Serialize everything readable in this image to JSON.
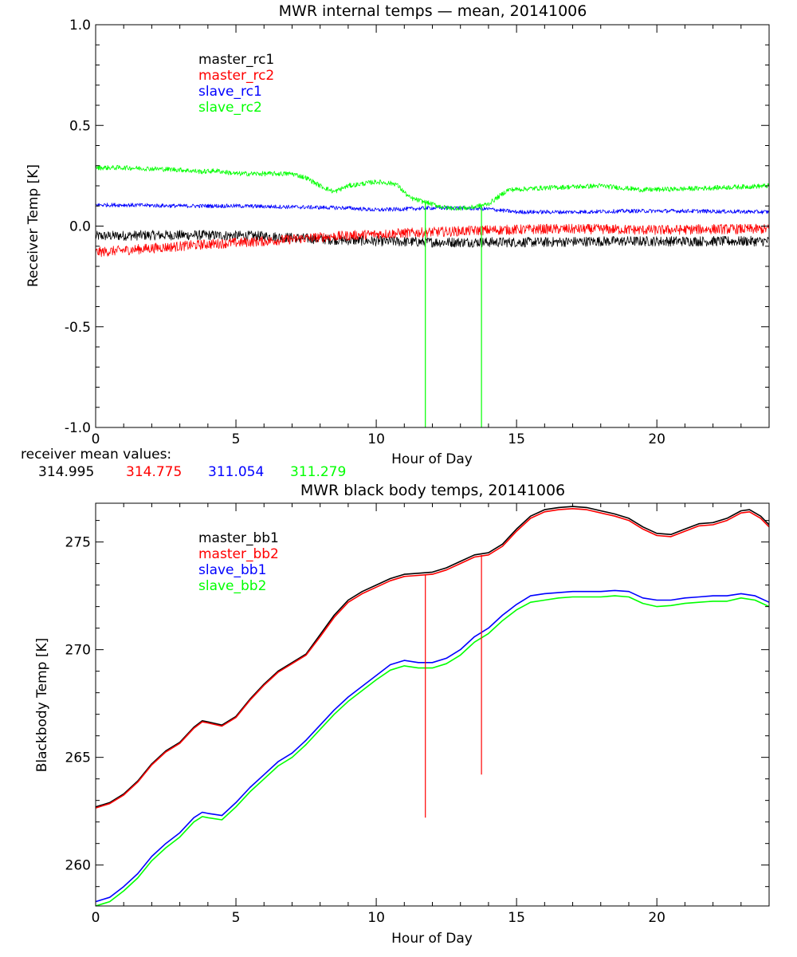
{
  "chart_data": [
    {
      "type": "line",
      "title": "MWR internal temps — mean, 20141006",
      "xlabel": "Hour of Day",
      "ylabel": "Receiver Temp [K]",
      "xlim": [
        0,
        24
      ],
      "ylim": [
        -1.0,
        1.0
      ],
      "x_ticks": [
        0,
        5,
        10,
        15,
        20
      ],
      "y_ticks": [
        -1.0,
        -0.5,
        0.0,
        0.5,
        1.0
      ],
      "y_tick_labels": [
        "-1.0",
        "-0.5",
        "0.0",
        "0.5",
        "1.0"
      ],
      "grid": false,
      "legend_position": "top-left",
      "series": [
        {
          "name": "master_rc1",
          "color": "#000000",
          "noise": 0.025,
          "x": [
            0,
            2,
            4,
            6,
            8,
            10,
            12,
            14,
            16,
            18,
            20,
            22,
            24
          ],
          "y": [
            -0.05,
            -0.045,
            -0.045,
            -0.05,
            -0.065,
            -0.075,
            -0.08,
            -0.08,
            -0.08,
            -0.075,
            -0.075,
            -0.075,
            -0.075
          ]
        },
        {
          "name": "master_rc2",
          "color": "#ff0000",
          "noise": 0.025,
          "x": [
            0,
            2,
            4,
            6,
            8,
            10,
            12,
            14,
            16,
            18,
            20,
            22,
            24
          ],
          "y": [
            -0.13,
            -0.11,
            -0.09,
            -0.075,
            -0.055,
            -0.04,
            -0.03,
            -0.02,
            -0.015,
            -0.015,
            -0.02,
            -0.015,
            -0.015
          ]
        },
        {
          "name": "slave_rc1",
          "color": "#0000ff",
          "noise": 0.01,
          "x": [
            0,
            1,
            3,
            5,
            7,
            9,
            10,
            11,
            12,
            13,
            14,
            15,
            17,
            19,
            21,
            24
          ],
          "y": [
            0.105,
            0.105,
            0.1,
            0.1,
            0.095,
            0.09,
            0.08,
            0.085,
            0.09,
            0.09,
            0.085,
            0.07,
            0.07,
            0.075,
            0.075,
            0.07
          ]
        },
        {
          "name": "slave_rc2",
          "color": "#00ff00",
          "noise": 0.012,
          "x": [
            0,
            1,
            2,
            3,
            3.8,
            4.3,
            5,
            6,
            7,
            7.5,
            8,
            8.5,
            9,
            10,
            10.7,
            11.2,
            11.7,
            12.5,
            13.3,
            14,
            14.7,
            16,
            18,
            19.5,
            21,
            24
          ],
          "y": [
            0.29,
            0.29,
            0.285,
            0.28,
            0.27,
            0.275,
            0.26,
            0.26,
            0.26,
            0.24,
            0.2,
            0.17,
            0.2,
            0.22,
            0.21,
            0.14,
            0.12,
            0.09,
            0.09,
            0.11,
            0.18,
            0.19,
            0.2,
            0.18,
            0.185,
            0.2
          ]
        }
      ],
      "vertical_lines": [
        {
          "x": 11.75,
          "y_from": -1.0,
          "y_to": 0.12,
          "color": "#00ff00"
        },
        {
          "x": 13.75,
          "y_from": -1.0,
          "y_to": 0.1,
          "color": "#00ff00"
        }
      ],
      "annotation": {
        "label": "receiver mean values:",
        "values": [
          {
            "text": "314.995",
            "color": "#000000"
          },
          {
            "text": "314.775",
            "color": "#ff0000"
          },
          {
            "text": "311.054",
            "color": "#0000ff"
          },
          {
            "text": "311.279",
            "color": "#00ff00"
          }
        ]
      }
    },
    {
      "type": "line",
      "title": "MWR black body temps, 20141006",
      "xlabel": "Hour of Day",
      "ylabel": "Blackbody Temp [K]",
      "xlim": [
        0,
        24
      ],
      "ylim": [
        258.1,
        276.8
      ],
      "x_ticks": [
        0,
        5,
        10,
        15,
        20
      ],
      "y_ticks": [
        260,
        265,
        270,
        275
      ],
      "y_tick_labels": [
        "260",
        "265",
        "270",
        "275"
      ],
      "grid": false,
      "legend_position": "top-left",
      "series": [
        {
          "name": "master_bb1",
          "color": "#000000",
          "noise": 0,
          "x": [
            0,
            0.5,
            1,
            1.5,
            2,
            2.5,
            3,
            3.5,
            3.8,
            4,
            4.5,
            5,
            5.5,
            6,
            6.5,
            7,
            7.5,
            8,
            8.5,
            9,
            9.5,
            10,
            10.5,
            11,
            11.5,
            12,
            12.5,
            13,
            13.5,
            14,
            14.5,
            15,
            15.5,
            16,
            16.5,
            17,
            17.5,
            18,
            18.5,
            19,
            19.5,
            20,
            20.5,
            21,
            21.5,
            22,
            22.5,
            23,
            23.3,
            23.7,
            24
          ],
          "y": [
            262.7,
            262.9,
            263.3,
            263.9,
            264.7,
            265.3,
            265.7,
            266.4,
            266.7,
            266.65,
            266.5,
            266.9,
            267.7,
            268.4,
            269.0,
            269.4,
            269.8,
            270.7,
            271.6,
            272.3,
            272.7,
            273.0,
            273.3,
            273.5,
            273.55,
            273.6,
            273.8,
            274.1,
            274.4,
            274.5,
            274.9,
            275.6,
            276.2,
            276.5,
            276.6,
            276.65,
            276.6,
            276.45,
            276.3,
            276.1,
            275.7,
            275.4,
            275.35,
            275.6,
            275.85,
            275.9,
            276.1,
            276.45,
            276.5,
            276.2,
            275.8
          ]
        },
        {
          "name": "master_bb2",
          "color": "#ff0000",
          "noise": 0,
          "x": [
            0,
            0.5,
            1,
            1.5,
            2,
            2.5,
            3,
            3.5,
            3.8,
            4,
            4.5,
            5,
            5.5,
            6,
            6.5,
            7,
            7.5,
            8,
            8.5,
            9,
            9.5,
            10,
            10.5,
            11,
            11.5,
            12,
            12.5,
            13,
            13.5,
            14,
            14.5,
            15,
            15.5,
            16,
            16.5,
            17,
            17.5,
            18,
            18.5,
            19,
            19.5,
            20,
            20.5,
            21,
            21.5,
            22,
            22.5,
            23,
            23.3,
            23.7,
            24
          ],
          "y": [
            262.65,
            262.85,
            263.25,
            263.85,
            264.65,
            265.25,
            265.65,
            266.35,
            266.65,
            266.6,
            266.45,
            266.85,
            267.65,
            268.35,
            268.95,
            269.35,
            269.75,
            270.6,
            271.5,
            272.2,
            272.6,
            272.9,
            273.2,
            273.4,
            273.45,
            273.5,
            273.7,
            274.0,
            274.3,
            274.4,
            274.8,
            275.5,
            276.1,
            276.4,
            276.5,
            276.55,
            276.5,
            276.35,
            276.2,
            276.0,
            275.6,
            275.3,
            275.25,
            275.5,
            275.75,
            275.8,
            276.0,
            276.35,
            276.4,
            276.1,
            275.7
          ]
        },
        {
          "name": "slave_bb1",
          "color": "#0000ff",
          "noise": 0,
          "x": [
            0,
            0.5,
            1,
            1.5,
            2,
            2.5,
            3,
            3.5,
            3.8,
            4,
            4.5,
            5,
            5.5,
            6,
            6.5,
            7,
            7.5,
            8,
            8.5,
            9,
            9.5,
            10,
            10.5,
            11,
            11.5,
            12,
            12.5,
            13,
            13.5,
            14,
            14.5,
            15,
            15.5,
            16,
            16.5,
            17,
            17.5,
            18,
            18.5,
            19,
            19.5,
            20,
            20.5,
            21,
            21.5,
            22,
            22.5,
            23,
            23.5,
            24
          ],
          "y": [
            258.3,
            258.5,
            259.0,
            259.6,
            260.4,
            261.0,
            261.5,
            262.2,
            262.45,
            262.4,
            262.3,
            262.9,
            263.6,
            264.2,
            264.8,
            265.2,
            265.8,
            266.5,
            267.2,
            267.8,
            268.3,
            268.8,
            269.3,
            269.5,
            269.4,
            269.4,
            269.6,
            270.0,
            270.6,
            271.0,
            271.6,
            272.1,
            272.5,
            272.6,
            272.65,
            272.7,
            272.7,
            272.7,
            272.75,
            272.7,
            272.4,
            272.3,
            272.3,
            272.4,
            272.45,
            272.5,
            272.5,
            272.6,
            272.5,
            272.2
          ]
        },
        {
          "name": "slave_bb2",
          "color": "#00ff00",
          "noise": 0,
          "x": [
            0,
            0.5,
            1,
            1.5,
            2,
            2.5,
            3,
            3.5,
            3.8,
            4,
            4.5,
            5,
            5.5,
            6,
            6.5,
            7,
            7.5,
            8,
            8.5,
            9,
            9.5,
            10,
            10.5,
            11,
            11.5,
            12,
            12.5,
            13,
            13.5,
            14,
            14.5,
            15,
            15.5,
            16,
            16.5,
            17,
            17.5,
            18,
            18.5,
            19,
            19.5,
            20,
            20.5,
            21,
            21.5,
            22,
            22.5,
            23,
            23.5,
            24
          ],
          "y": [
            258.1,
            258.3,
            258.8,
            259.4,
            260.2,
            260.8,
            261.3,
            262.0,
            262.25,
            262.2,
            262.1,
            262.7,
            263.4,
            264.0,
            264.6,
            265.0,
            265.6,
            266.3,
            267.0,
            267.6,
            268.1,
            268.6,
            269.05,
            269.25,
            269.15,
            269.15,
            269.35,
            269.75,
            270.35,
            270.75,
            271.35,
            271.85,
            272.2,
            272.3,
            272.4,
            272.45,
            272.45,
            272.45,
            272.5,
            272.45,
            272.15,
            272.0,
            272.05,
            272.15,
            272.2,
            272.25,
            272.25,
            272.4,
            272.3,
            272.0
          ]
        }
      ],
      "vertical_lines": [
        {
          "x": 11.75,
          "y_from": 262.2,
          "y_to": 273.5,
          "color": "#ff0000"
        },
        {
          "x": 13.75,
          "y_from": 264.2,
          "y_to": 274.4,
          "color": "#ff0000"
        }
      ]
    }
  ]
}
